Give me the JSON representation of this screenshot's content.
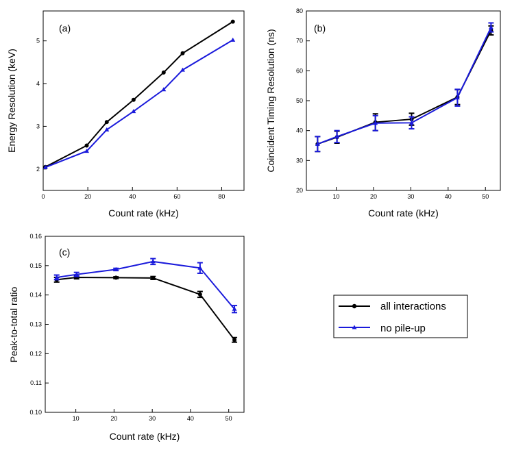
{
  "legend": {
    "entries": [
      {
        "label": "all interactions",
        "color": "#000000",
        "marker": "circle"
      },
      {
        "label": "no pile-up",
        "color": "#1a1adb",
        "marker": "triangle"
      }
    ]
  },
  "chart_data": [
    {
      "id": "a",
      "type": "line",
      "panel_label": "(a)",
      "xlabel": "Count rate (kHz)",
      "ylabel": "Energy Resolution (keV)",
      "xlim": [
        0,
        90
      ],
      "ylim": [
        1.5,
        5.7
      ],
      "xticks": [
        0,
        20,
        40,
        60,
        80
      ],
      "yticks": [
        2,
        3,
        4,
        5
      ],
      "series": [
        {
          "name": "all interactions",
          "color": "#000000",
          "marker": "circle",
          "x": [
            1,
            19.5,
            28.5,
            40.5,
            54,
            62.5,
            85
          ],
          "y": [
            2.05,
            2.55,
            3.1,
            3.62,
            4.26,
            4.71,
            5.45
          ]
        },
        {
          "name": "no pile-up",
          "color": "#1a1adb",
          "marker": "triangle",
          "x": [
            1,
            19.5,
            28.5,
            40.5,
            54,
            62.5,
            85
          ],
          "y": [
            2.04,
            2.42,
            2.92,
            3.35,
            3.86,
            4.32,
            5.02
          ]
        }
      ]
    },
    {
      "id": "b",
      "type": "line",
      "panel_label": "(b)",
      "xlabel": "Count rate (kHz)",
      "ylabel": "Coincident Timing Resolution (ns)",
      "xlim": [
        2,
        54
      ],
      "ylim": [
        20,
        80
      ],
      "xticks": [
        10,
        20,
        30,
        40,
        50
      ],
      "yticks": [
        20,
        30,
        40,
        50,
        60,
        70,
        80
      ],
      "series": [
        {
          "name": "all interactions",
          "color": "#000000",
          "marker": "circle",
          "x": [
            5,
            10.2,
            20.5,
            30.2,
            42.5,
            51.5
          ],
          "y": [
            35.5,
            37.8,
            42.8,
            43.8,
            51.2,
            73.5
          ],
          "err": [
            2.5,
            2.0,
            2.8,
            2.0,
            2.5,
            1.5
          ]
        },
        {
          "name": "no pile-up",
          "color": "#1a1adb",
          "marker": "triangle",
          "x": [
            5,
            10.2,
            20.5,
            30.2,
            42.5,
            51.5
          ],
          "y": [
            35.5,
            38.0,
            42.5,
            42.6,
            51.0,
            74.5
          ],
          "err": [
            2.5,
            2.0,
            2.5,
            2.0,
            2.8,
            1.5
          ]
        }
      ]
    },
    {
      "id": "c",
      "type": "line",
      "panel_label": "(c)",
      "xlabel": "Count rate (kHz)",
      "ylabel": "Peak-to-total ratio",
      "xlim": [
        2,
        54
      ],
      "ylim": [
        0.1,
        0.16
      ],
      "xticks": [
        10,
        20,
        30,
        40,
        50
      ],
      "yticks": [
        "0.10",
        "0.11",
        "0.12",
        "0.13",
        "0.14",
        "0.15",
        "0.16"
      ],
      "series": [
        {
          "name": "all interactions",
          "color": "#000000",
          "marker": "circle",
          "x": [
            5,
            10.2,
            20.5,
            30.2,
            42.5,
            51.5
          ],
          "y": [
            0.1452,
            0.146,
            0.1459,
            0.1458,
            0.1402,
            0.1247
          ],
          "err": [
            0.0008,
            0.0005,
            0.0003,
            0.0005,
            0.001,
            0.0008
          ]
        },
        {
          "name": "no pile-up",
          "color": "#1a1adb",
          "marker": "triangle",
          "x": [
            5,
            10.2,
            20.5,
            30.2,
            42.5,
            51.5
          ],
          "y": [
            0.146,
            0.147,
            0.1487,
            0.1514,
            0.1492,
            0.1352
          ],
          "err": [
            0.0008,
            0.0007,
            0.0004,
            0.001,
            0.0018,
            0.0012
          ]
        }
      ]
    }
  ]
}
